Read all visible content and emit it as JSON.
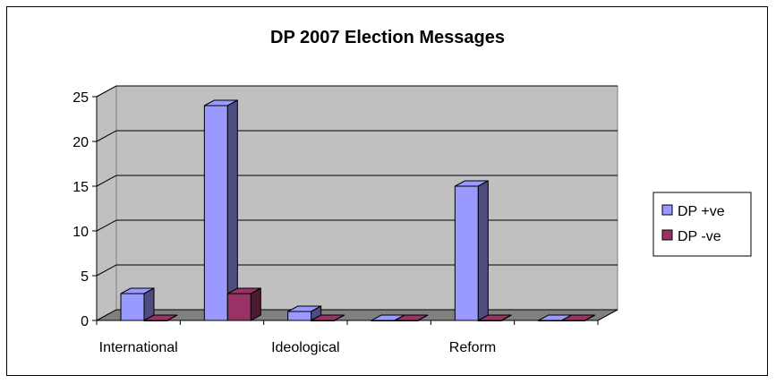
{
  "chart_data": {
    "type": "bar",
    "title": "DP 2007 Election Messages",
    "categories": [
      "International",
      "",
      "Ideological",
      "",
      "Reform",
      ""
    ],
    "series": [
      {
        "name": "DP +ve",
        "values": [
          3,
          24,
          1,
          0,
          15,
          0
        ],
        "color": "#9999ff"
      },
      {
        "name": "DP -ve",
        "values": [
          0,
          3,
          0,
          0,
          0,
          0
        ],
        "color": "#993366"
      }
    ],
    "yticks": [
      0,
      5,
      10,
      15,
      20,
      25
    ],
    "ylim": [
      0,
      25
    ],
    "grid": true,
    "legend": "right"
  }
}
